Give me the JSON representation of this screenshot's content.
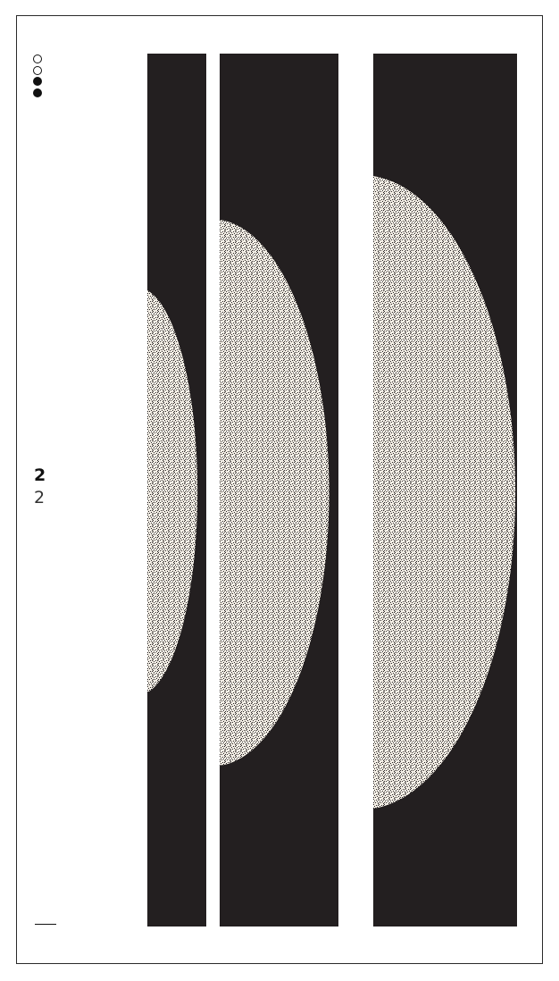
{
  "artwork": {
    "indicators": [
      {
        "state": "empty"
      },
      {
        "state": "empty"
      },
      {
        "state": "filled"
      },
      {
        "state": "filled"
      }
    ],
    "number_bold": "2",
    "number_light": "2",
    "colors": {
      "background": "#ffffff",
      "frame": "#2a2a2a",
      "strip": "#231f20",
      "grain": "#f4efe6"
    }
  }
}
